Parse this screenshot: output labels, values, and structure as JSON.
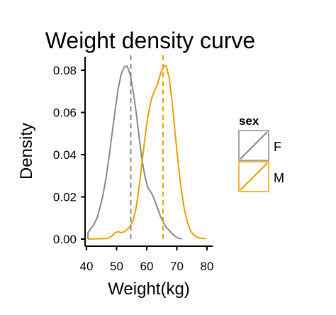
{
  "chart_data": {
    "type": "area",
    "title": "Weight density curve",
    "xlabel": "Weight(kg)",
    "ylabel": "Density",
    "xlim": [
      40,
      80
    ],
    "ylim": [
      0,
      0.085
    ],
    "x_ticks": [
      "40",
      "50",
      "60",
      "70",
      "80"
    ],
    "y_ticks": [
      "0.00",
      "0.02",
      "0.04",
      "0.06",
      "0.08"
    ],
    "legend": {
      "title": "sex",
      "placement": "right",
      "entries": [
        "F",
        "M"
      ]
    },
    "series": [
      {
        "name": "F",
        "color": "#888888",
        "mean": 54.7,
        "points": [
          [
            40.5,
            0.003
          ],
          [
            41.5,
            0.005
          ],
          [
            42.5,
            0.007
          ],
          [
            43.5,
            0.01
          ],
          [
            44.5,
            0.015
          ],
          [
            45.5,
            0.021
          ],
          [
            46.5,
            0.029
          ],
          [
            47.5,
            0.039
          ],
          [
            48.5,
            0.05
          ],
          [
            49.5,
            0.061
          ],
          [
            50.5,
            0.071
          ],
          [
            51.5,
            0.078
          ],
          [
            52.5,
            0.0815
          ],
          [
            53.5,
            0.082
          ],
          [
            54.5,
            0.078
          ],
          [
            55.5,
            0.07
          ],
          [
            56.5,
            0.06
          ],
          [
            57.5,
            0.048
          ],
          [
            58.5,
            0.037
          ],
          [
            59.5,
            0.029
          ],
          [
            60.5,
            0.024
          ],
          [
            61.5,
            0.022
          ],
          [
            62.5,
            0.019
          ],
          [
            63.5,
            0.015
          ],
          [
            64.5,
            0.011
          ],
          [
            65.5,
            0.008
          ],
          [
            66.5,
            0.0055
          ],
          [
            67.5,
            0.004
          ],
          [
            68.5,
            0.0025
          ],
          [
            69.5,
            0.0012
          ],
          [
            70.5,
            0.0004
          ],
          [
            71.5,
            0.0001
          ]
        ]
      },
      {
        "name": "M",
        "color": "#E69F00",
        "mean": 65.4,
        "points": [
          [
            40.5,
            0.0
          ],
          [
            47.0,
            0.0003
          ],
          [
            48.5,
            0.0015
          ],
          [
            49.5,
            0.003
          ],
          [
            50.5,
            0.0035
          ],
          [
            51.5,
            0.003
          ],
          [
            52.5,
            0.0035
          ],
          [
            53.5,
            0.0045
          ],
          [
            54.5,
            0.006
          ],
          [
            55.5,
            0.009
          ],
          [
            56.5,
            0.015
          ],
          [
            57.5,
            0.025
          ],
          [
            58.5,
            0.037
          ],
          [
            59.5,
            0.049
          ],
          [
            60.5,
            0.059
          ],
          [
            61.5,
            0.066
          ],
          [
            62.5,
            0.07
          ],
          [
            63.5,
            0.073
          ],
          [
            64.5,
            0.078
          ],
          [
            65.5,
            0.082
          ],
          [
            66.5,
            0.082
          ],
          [
            67.5,
            0.076
          ],
          [
            68.5,
            0.064
          ],
          [
            69.5,
            0.049
          ],
          [
            70.5,
            0.035
          ],
          [
            71.5,
            0.023
          ],
          [
            72.5,
            0.014
          ],
          [
            73.5,
            0.008
          ],
          [
            74.5,
            0.004
          ],
          [
            75.5,
            0.002
          ],
          [
            76.5,
            0.001
          ],
          [
            77.5,
            0.0005
          ],
          [
            78.5,
            0.0004
          ],
          [
            79.5,
            0.0002
          ]
        ]
      }
    ]
  }
}
